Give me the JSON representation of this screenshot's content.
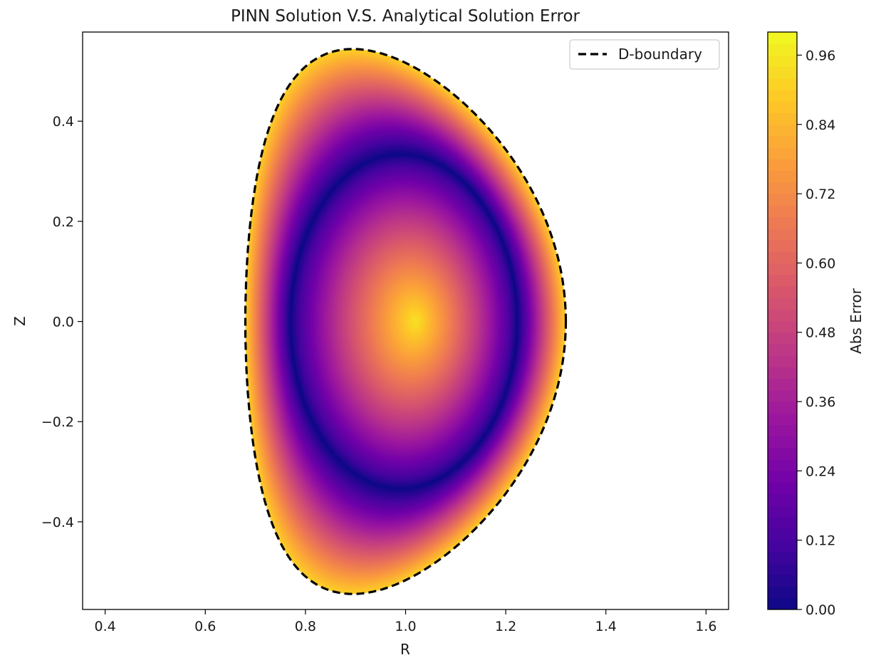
{
  "chart_data": {
    "type": "heatmap",
    "title": "PINN Solution V.S. Analytical Solution Error",
    "xlabel": "R",
    "ylabel": "Z",
    "xlim": [
      0.355,
      1.645
    ],
    "ylim": [
      -0.575,
      0.578
    ],
    "xticks": [
      0.4,
      0.6,
      0.8,
      1.0,
      1.2,
      1.4,
      1.6
    ],
    "xtick_labels": [
      "0.4",
      "0.6",
      "0.8",
      "1.0",
      "1.2",
      "1.4",
      "1.6"
    ],
    "yticks": [
      -0.4,
      -0.2,
      0.0,
      0.2,
      0.4
    ],
    "ytick_labels": [
      "−0.4",
      "−0.2",
      "0.0",
      "0.2",
      "0.4"
    ],
    "colormap": "plasma",
    "colorbar": {
      "label": "Abs Error",
      "range": [
        0.0,
        1.0
      ],
      "ticks": [
        0.0,
        0.12,
        0.24,
        0.36,
        0.48,
        0.6,
        0.72,
        0.84,
        0.96
      ],
      "tick_labels": [
        "0.00",
        "0.12",
        "0.24",
        "0.36",
        "0.48",
        "0.60",
        "0.72",
        "0.84",
        "0.96"
      ],
      "colors": [
        "#0d0887",
        "#46039f",
        "#7201a8",
        "#9c179e",
        "#bd3786",
        "#d8576b",
        "#ed7953",
        "#fb9f3a",
        "#fdca26",
        "#f0f921"
      ]
    },
    "boundary": {
      "label": "D-boundary",
      "center_R": 1.0,
      "minor_radius": 0.32,
      "elongation": 1.7,
      "triangularity": 0.33,
      "line_style": "dashed",
      "color": "#000000"
    },
    "error_field": {
      "zero_contour_R": [
        0.77,
        1.21
      ],
      "zero_contour_Z": [
        -0.335,
        0.335
      ],
      "center_error": 0.95,
      "edge_error": 0.9,
      "right_edge_error": 1.0,
      "grid": "off"
    },
    "legend_position": "upper right"
  }
}
